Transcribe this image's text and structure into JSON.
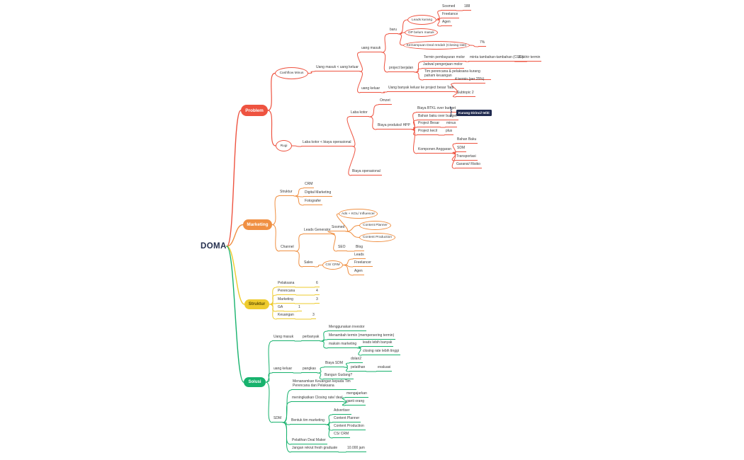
{
  "colors": {
    "red": "#ee5340",
    "orange": "#f09043",
    "yellow": "#eecb2d",
    "green": "#17b26d",
    "navy": "#202b50"
  },
  "icons": {
    "brace": "}"
  },
  "nodes": {
    "doma": "DOMA",
    "problem": "Problem",
    "cashflow": "Cashflow Minus",
    "lbl_uang_io": "Uang masuk < uang keluar",
    "uang_masuk": "uang masuk",
    "baru": "baru",
    "leads_kurang": "Leads kurang",
    "sosmed1": "Sosmed",
    "v188": "188",
    "freelance1": "Freelance",
    "agen1": "Agen",
    "dp_belum": "DP belum masuk",
    "kemampuan": "Kemampuan Deal rendah (Closing rate)",
    "v7": "7%",
    "project_berjalan": "project berjalan",
    "termin_molor": "Termin pembayaran molor",
    "minta_cco": "minta tambahan-tambahan (CCO)",
    "di_akhir": "di akhir termin",
    "jadwal_molor": "Jadwal pengerjaan molor",
    "tim_kurang": "Tim perencana & pelaksana kurang paham keuangan",
    "uang_keluar_p": "uang keluar",
    "uang_banyak": "Uang banyak keluar ke project besar Tadi",
    "termin4": "4 termin (per 25%)",
    "subtopic2": "Subtopic 2",
    "rugi": "Rugi",
    "lbl_laba": "Laba kotor < biaya operasional",
    "laba_kotor": "Laba kotor",
    "omzet": "Omzet",
    "biaya_prod": "Biaya produksi/ HPP",
    "btkl": "Biaya BTKL over budget",
    "bahan_over": "Bahan baku over budget",
    "badge": "Kurang Dirinci/ teliti",
    "project_besar": "Project Besar",
    "v_minus": "minus",
    "project_kecil": "Project kecil",
    "v_plus": "plus",
    "komponen": "Komponen Anggaran",
    "bahan_baku": "Bahan Baku",
    "sdm_k": "SDM",
    "transportasi": "Transportasi",
    "garansi": "Garansi/ Risiko",
    "biaya_ops": "Biaya operasional",
    "m_box": "Marketing",
    "m_struktur": "Struktur",
    "crm": "CRM",
    "digital": "Digital Marketing",
    "fotografer": "Fotografer",
    "channel": "Channel",
    "leads_gen": "Leads Generator",
    "sosmed2": "Sosmed",
    "ads_kol": "Ads + KOL/ Influencer",
    "cplanner1": "Content Planner",
    "cprod1": "Content Production",
    "seo": "SEO",
    "blog": "Blog",
    "sales": "Sales",
    "cs_crm1": "CS/ CRM",
    "leads2": "Leads",
    "freelancer2": "Freelancer",
    "agen2": "Agen",
    "s_box": "Struktur",
    "pelaksana": "Pelaksana",
    "v6": "6",
    "perencana": "Perencana",
    "v4": "4",
    "marketing_s": "Marketing",
    "v3": "3",
    "ga": "GA",
    "v1": "1",
    "keuangan": "Keuangan",
    "v3b": "3",
    "sol_box": "Solusi",
    "uang_masuk_s": "Uang masuk",
    "perbanyak": "perbanyak",
    "investor": "Menggunakan investor",
    "menambah": "Menambah termin (mempersering termin)",
    "maksin": "maksin marketing",
    "leads_banyak": "leads lebih banyak",
    "closing_tinggi": "closing rate lebih tinggi",
    "uang_keluar_s": "uang keluar",
    "pangkas": "pangkas",
    "biaya_sdm": "Biaya SDM",
    "dolan": "dolan2",
    "pelatihan": "pelatihan",
    "evaluasi": "evaluasi",
    "gudang": "Bangun Gudang?",
    "menanamkan": "Menanamkan Keuangan kepada Tim Perencana dan Pelaksana",
    "meningkatkan": "meningkatkan Closing rate/ deal",
    "mengajarkan": "mengajarkan",
    "ganti_orang": "ganti orang",
    "sdm_s": "SDM",
    "bentuk_tim": "Bentuk tim marketing",
    "advertiser": "Advertiser",
    "cplanner2": "Content Planner",
    "cprod2": "Content Production",
    "cs_crm2": "CS/ CRM",
    "pelatihan_deal": "Pelatihan Deal Maker",
    "jangan_rekrut": "Jangan rekrut fresh graduate",
    "v10000": "10.000 jam"
  }
}
